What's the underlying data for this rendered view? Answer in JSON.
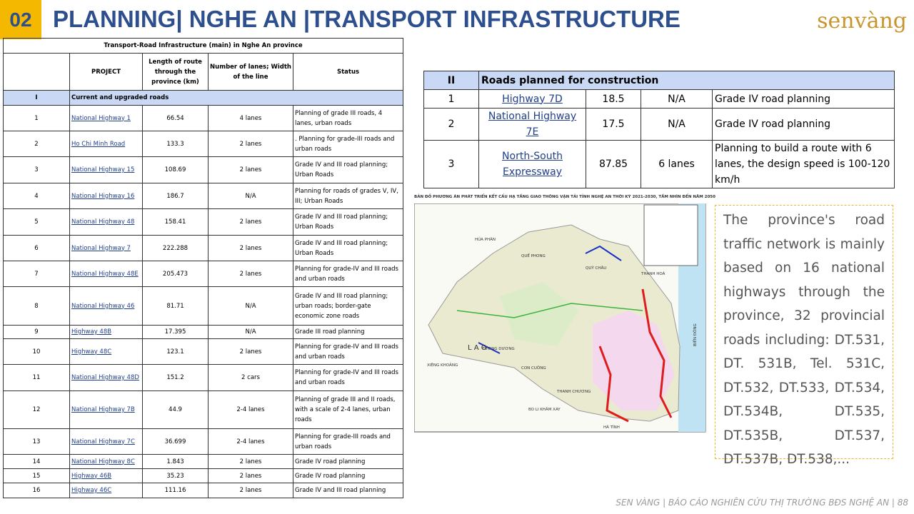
{
  "header": {
    "number": "02",
    "title": "PLANNING| NGHE AN |TRANSPORT INFRASTRUCTURE",
    "logo": "senvàng"
  },
  "table": {
    "title": "Transport-Road Infrastructure (main) in Nghe An province",
    "headers": [
      "",
      "PROJECT",
      "Length of route through the province (km)",
      "Number of lanes; Width of the line",
      "Status"
    ],
    "section": [
      "I",
      "Current and upgraded roads"
    ],
    "rows": [
      [
        "1",
        "National Highway 1",
        "66.54",
        "4 lanes",
        "Planning of grade III roads, 4 lanes, urban roads"
      ],
      [
        "2",
        "Ho Chi Minh Road",
        "133.3",
        "2 lanes",
        ". Planning for grade-III roads and urban roads"
      ],
      [
        "3",
        "National Highway 15",
        "108.69",
        "2 lanes",
        "Grade IV and III road planning; Urban Roads"
      ],
      [
        "4",
        "National Highway 16",
        "186.7",
        "N/A",
        "Planning for roads of grades V, IV, III; Urban Roads"
      ],
      [
        "5",
        "National Highway 48",
        "158.41",
        "2 lanes",
        "Grade IV and III road planning; Urban Roads"
      ],
      [
        "6",
        "National Highway 7",
        "222.288",
        "2 lanes",
        "Grade IV and III road planning; Urban Roads"
      ],
      [
        "7",
        "National Highway 48E",
        "205.473",
        "2 lanes",
        "Planning for grade-IV and III roads and urban roads"
      ],
      [
        "8",
        "National Highway 46",
        "81.71",
        "N/A",
        "Grade IV and III road planning; urban roads; border-gate economic zone roads"
      ],
      [
        "9",
        "Highway 48B",
        "17.395",
        "N/A",
        "Grade III road planning"
      ],
      [
        "10",
        "Highway 48C",
        "123.1",
        "2 lanes",
        "Planning for grade-IV and III roads and urban roads"
      ],
      [
        "11",
        "National Highway 48D",
        "151.2",
        "2 cars",
        "Planning for grade-IV and III roads and urban roads"
      ],
      [
        "12",
        "National Highway 7B",
        "44.9",
        "2-4 lanes",
        "Planning of grade III and II roads, with a scale of 2-4 lanes, urban roads"
      ],
      [
        "13",
        "National Highway 7C",
        "36.699",
        "2-4 lanes",
        "Planning for grade-III roads and urban roads"
      ],
      [
        "14",
        "National Highway 8C",
        "1.843",
        "2 lanes",
        "Grade IV road planning"
      ],
      [
        "15",
        "Highway 46B",
        "35.23",
        "2 lanes",
        "Grade IV road planning"
      ],
      [
        "16",
        "Highway 46C",
        "111.16",
        "2 lanes",
        "Grade IV and III road planning"
      ]
    ]
  },
  "table2": {
    "section": [
      "II",
      "Roads planned for construction"
    ],
    "rows": [
      [
        "1",
        "Highway 7D",
        "18.5",
        "N/A",
        "Grade IV road planning"
      ],
      [
        "2",
        "National Highway 7E",
        "17.5",
        "N/A",
        "Grade IV road planning"
      ],
      [
        "3",
        "North-South Expressway",
        "87.85",
        "6 lanes",
        "Planning to build a route with 6 lanes, the design speed is 100-120 km/h"
      ]
    ]
  },
  "map": {
    "title": "BẢN ĐỒ PHƯƠNG ÁN PHÁT TRIỂN KẾT CẤU HẠ TẦNG GIAO THÔNG VẬN TẢI TỈNH NGHỆ AN THỜI KỲ 2021-2030, TẦM NHÌN ĐẾN NĂM 2050",
    "labels": [
      "HỦA PHĂN",
      "QUẾ PHONG",
      "QUỲ CHÂU",
      "THANH HOÁ",
      "XIÊNG KHOẢNG",
      "L A O",
      "TƯƠNG DƯƠNG",
      "CON CUÔNG",
      "THANH CHƯƠNG",
      "BO LI KHĂM XAY",
      "HÀ TĨNH",
      "BIỂN ĐÔNG"
    ]
  },
  "text_box": "The province's road traffic network is mainly based on 16 national highways through the province, 32 provincial roads including: DT.531, DT. 531B, Tel. 531C, DT.532, DT.533, DT.534, DT.534B, DT.535, DT.535B, DT.537, DT.537B, DT.538,...",
  "footer": "SEN VÀNG | BÁO CÁO NGHIÊN CỨU THỊ TRƯỜNG BĐS NGHỆ AN | 88"
}
